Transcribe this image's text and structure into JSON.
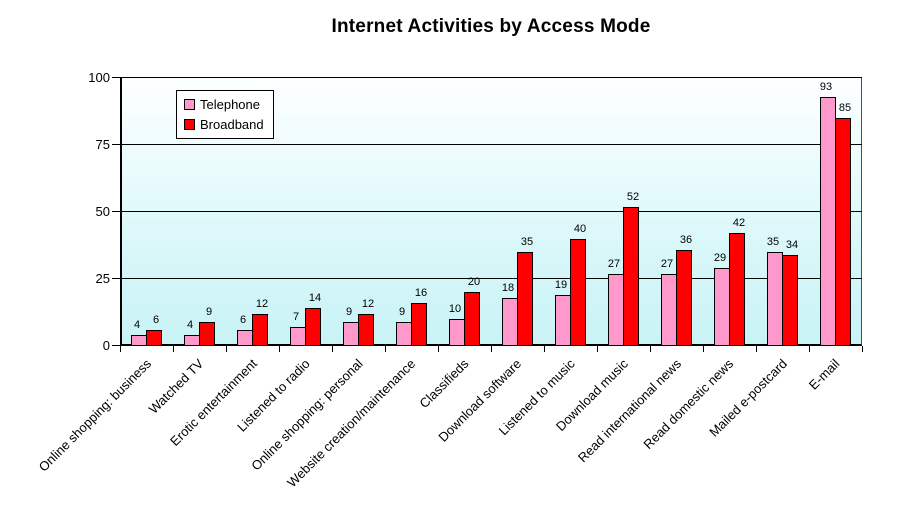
{
  "chart_data": {
    "type": "bar",
    "title": "Internet Activities by Access Mode",
    "categories": [
      "Online shopping: business",
      "Watched TV",
      "Erotic entertainment",
      "Listened to radio",
      "Online shopping: personal",
      "Website creation/maintenance",
      "Classifieds",
      "Download software",
      "Listened to music",
      "Download music",
      "Read international news",
      "Read domestic news",
      "Mailed e-postcard",
      "E-mail"
    ],
    "series": [
      {
        "name": "Telephone",
        "color": "#FF99CC",
        "values": [
          4,
          4,
          6,
          7,
          9,
          9,
          10,
          18,
          19,
          27,
          27,
          29,
          35,
          93
        ]
      },
      {
        "name": "Broadband",
        "color": "#FF0000",
        "values": [
          6,
          9,
          12,
          14,
          12,
          16,
          20,
          35,
          40,
          52,
          36,
          42,
          34,
          85
        ]
      }
    ],
    "xlabel": "",
    "ylabel": "",
    "ylim": [
      0,
      100
    ],
    "yticks": [
      0,
      25,
      50,
      75,
      100
    ],
    "grid": "horizontal",
    "legend_position": "top-left-inside",
    "colors": {
      "plot_bg_top": "#FDFFFF",
      "plot_bg_bottom": "#C9F3F6",
      "gridline": "#000000",
      "bar_border": "#000000"
    }
  }
}
